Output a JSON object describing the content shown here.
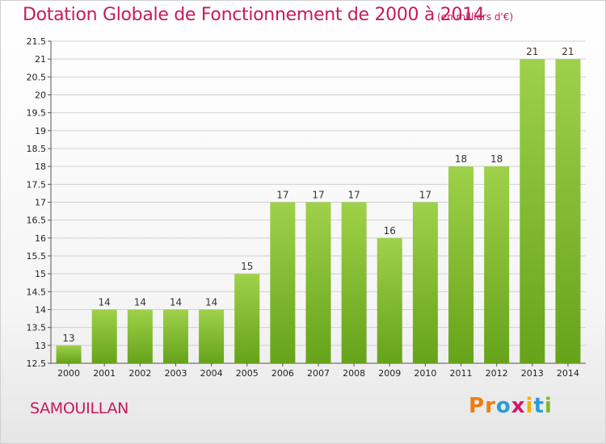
{
  "header": {
    "title": "Dotation Globale de Fonctionnement de 2000 à 2014",
    "unit": "(en milliers d'€)"
  },
  "footer": {
    "commune": "SAMOUILLAN",
    "logo": [
      "P",
      "r",
      "o",
      "x",
      "i",
      "t",
      "i"
    ]
  },
  "colors": {
    "bar_light": "#9fd14a",
    "bar_dark": "#66a31a",
    "title": "#c8195c",
    "logo": [
      "#ee7d10",
      "#ee7d10",
      "#2a9bd6",
      "#d4186b",
      "#f1b10d",
      "#2a9bd6",
      "#7bbb2a"
    ]
  },
  "chart_data": {
    "type": "bar",
    "title": "Dotation Globale de Fonctionnement de 2000 à 2014",
    "subtitle": "(en milliers d'€)",
    "xlabel": "",
    "ylabel": "",
    "categories": [
      "2000",
      "2001",
      "2002",
      "2003",
      "2004",
      "2005",
      "2006",
      "2007",
      "2008",
      "2009",
      "2010",
      "2011",
      "2012",
      "2013",
      "2014"
    ],
    "values": [
      13,
      14,
      14,
      14,
      14,
      15,
      17,
      17,
      17,
      16,
      17,
      18,
      18,
      21,
      21
    ],
    "ylim": [
      12.5,
      21.5
    ],
    "yticks": [
      "12.5",
      "13",
      "13.5",
      "14",
      "14.5",
      "15",
      "15.5",
      "16",
      "16.5",
      "17",
      "17.5",
      "18",
      "18.5",
      "19",
      "19.5",
      "20",
      "20.5",
      "21",
      "21.5"
    ],
    "grid": true
  }
}
